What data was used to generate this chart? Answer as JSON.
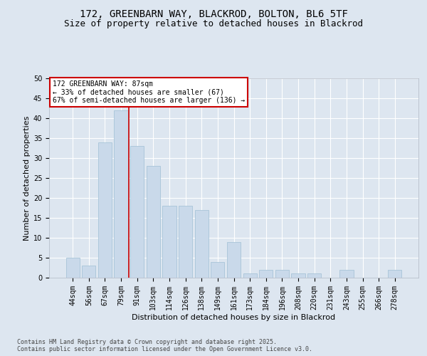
{
  "title1": "172, GREENBARN WAY, BLACKROD, BOLTON, BL6 5TF",
  "title2": "Size of property relative to detached houses in Blackrod",
  "xlabel": "Distribution of detached houses by size in Blackrod",
  "ylabel": "Number of detached properties",
  "footer": "Contains HM Land Registry data © Crown copyright and database right 2025.\nContains public sector information licensed under the Open Government Licence v3.0.",
  "categories": [
    "44sqm",
    "56sqm",
    "67sqm",
    "79sqm",
    "91sqm",
    "103sqm",
    "114sqm",
    "126sqm",
    "138sqm",
    "149sqm",
    "161sqm",
    "173sqm",
    "184sqm",
    "196sqm",
    "208sqm",
    "220sqm",
    "231sqm",
    "243sqm",
    "255sqm",
    "266sqm",
    "278sqm"
  ],
  "values": [
    5,
    3,
    34,
    42,
    33,
    28,
    18,
    18,
    17,
    4,
    9,
    1,
    2,
    2,
    1,
    1,
    0,
    2,
    0,
    0,
    2
  ],
  "bar_color": "#c9d9ea",
  "bar_edge_color": "#a8c4d8",
  "vline_x": 3.5,
  "vline_color": "#cc0000",
  "annotation_text": "172 GREENBARN WAY: 87sqm\n← 33% of detached houses are smaller (67)\n67% of semi-detached houses are larger (136) →",
  "annotation_box_facecolor": "#ffffff",
  "annotation_box_edgecolor": "#cc0000",
  "ylim": [
    0,
    50
  ],
  "yticks": [
    0,
    5,
    10,
    15,
    20,
    25,
    30,
    35,
    40,
    45,
    50
  ],
  "bg_color": "#dde6f0",
  "plot_bg_color": "#dde6f0",
  "grid_color": "#ffffff",
  "title_fontsize": 10,
  "subtitle_fontsize": 9,
  "tick_fontsize": 7,
  "ylabel_fontsize": 8,
  "xlabel_fontsize": 8,
  "footer_fontsize": 6,
  "annotation_fontsize": 7
}
